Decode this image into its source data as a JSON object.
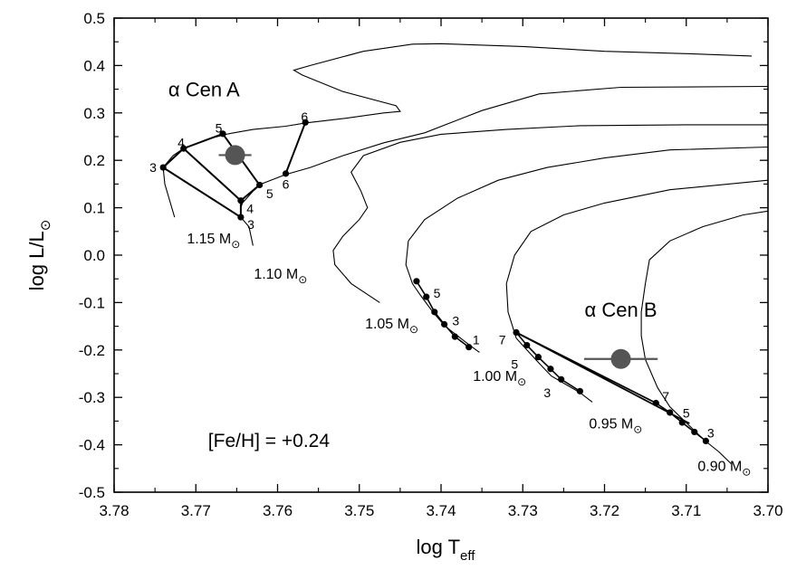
{
  "chart_data": {
    "type": "line",
    "title": "",
    "xaxis": {
      "label_main": "log T",
      "label_sub": "eff",
      "range": [
        3.78,
        3.7
      ],
      "ticks": [
        3.78,
        3.77,
        3.76,
        3.75,
        3.74,
        3.73,
        3.72,
        3.71,
        3.7
      ],
      "tick_labels": [
        "3.78",
        "3.77",
        "3.76",
        "3.75",
        "3.74",
        "3.73",
        "3.72",
        "3.71",
        "3.70"
      ],
      "reversed": true
    },
    "yaxis": {
      "label_main": "log L/L",
      "label_sub": "⊙",
      "range": [
        -0.5,
        0.5
      ],
      "ticks": [
        -0.5,
        -0.4,
        -0.3,
        -0.2,
        -0.1,
        0.0,
        0.1,
        0.2,
        0.3,
        0.4,
        0.5
      ],
      "tick_labels": [
        "-0.5",
        "-0.4",
        "-0.3",
        "-0.2",
        "-0.1",
        "0.0",
        "0.1",
        "0.2",
        "0.3",
        "0.4",
        "0.5"
      ]
    },
    "grid": false,
    "tracks": [
      {
        "mass_label": "1.15 M",
        "points": [
          [
            3.7726,
            0.08
          ],
          [
            3.7738,
            0.15
          ],
          [
            3.774,
            0.185
          ],
          [
            3.7728,
            0.21
          ],
          [
            3.7715,
            0.225
          ],
          [
            3.7685,
            0.245
          ],
          [
            3.766,
            0.256
          ],
          [
            3.763,
            0.265
          ],
          [
            3.759,
            0.272
          ],
          [
            3.7565,
            0.279
          ],
          [
            3.752,
            0.288
          ],
          [
            3.747,
            0.3
          ],
          [
            3.745,
            0.303
          ],
          [
            3.7455,
            0.315
          ],
          [
            3.752,
            0.345
          ],
          [
            3.757,
            0.38
          ],
          [
            3.758,
            0.39
          ],
          [
            3.756,
            0.4
          ],
          [
            3.7495,
            0.43
          ],
          [
            3.7435,
            0.445
          ],
          [
            3.74,
            0.446
          ],
          [
            3.73,
            0.44
          ],
          [
            3.72,
            0.43
          ],
          [
            3.71,
            0.425
          ],
          [
            3.702,
            0.42
          ]
        ]
      },
      {
        "mass_label": "1.10 M",
        "points": [
          [
            3.763,
            0.02
          ],
          [
            3.7635,
            0.06
          ],
          [
            3.7645,
            0.08
          ],
          [
            3.7645,
            0.1
          ],
          [
            3.7643,
            0.11
          ],
          [
            3.763,
            0.135
          ],
          [
            3.762,
            0.15
          ],
          [
            3.759,
            0.17
          ],
          [
            3.756,
            0.185
          ],
          [
            3.752,
            0.21
          ],
          [
            3.747,
            0.237
          ],
          [
            3.742,
            0.258
          ],
          [
            3.735,
            0.305
          ],
          [
            3.728,
            0.34
          ],
          [
            3.718,
            0.354
          ],
          [
            3.7,
            0.356
          ]
        ]
      },
      {
        "mass_label": "1.05 M",
        "points": [
          [
            3.7475,
            -0.1
          ],
          [
            3.751,
            -0.06
          ],
          [
            3.753,
            -0.02
          ],
          [
            3.7532,
            0.01
          ],
          [
            3.752,
            0.04
          ],
          [
            3.75,
            0.075
          ],
          [
            3.749,
            0.1
          ],
          [
            3.7498,
            0.135
          ],
          [
            3.751,
            0.175
          ],
          [
            3.7495,
            0.21
          ],
          [
            3.745,
            0.238
          ],
          [
            3.74,
            0.255
          ],
          [
            3.732,
            0.265
          ],
          [
            3.723,
            0.273
          ],
          [
            3.71,
            0.275
          ],
          [
            3.7,
            0.275
          ]
        ]
      },
      {
        "mass_label": "1.00 M",
        "points": [
          [
            3.7353,
            -0.205
          ],
          [
            3.7365,
            -0.19
          ],
          [
            3.738,
            -0.17
          ],
          [
            3.7395,
            -0.15
          ],
          [
            3.741,
            -0.12
          ],
          [
            3.7425,
            -0.085
          ],
          [
            3.7435,
            -0.06
          ],
          [
            3.7443,
            -0.02
          ],
          [
            3.744,
            0.03
          ],
          [
            3.742,
            0.075
          ],
          [
            3.738,
            0.12
          ],
          [
            3.733,
            0.158
          ],
          [
            3.727,
            0.185
          ],
          [
            3.72,
            0.205
          ],
          [
            3.712,
            0.222
          ],
          [
            3.7,
            0.228
          ]
        ]
      },
      {
        "mass_label": "0.95 M",
        "points": [
          [
            3.7215,
            -0.31
          ],
          [
            3.723,
            -0.29
          ],
          [
            3.7245,
            -0.275
          ],
          [
            3.7265,
            -0.255
          ],
          [
            3.728,
            -0.228
          ],
          [
            3.7295,
            -0.2
          ],
          [
            3.7308,
            -0.175
          ],
          [
            3.7318,
            -0.12
          ],
          [
            3.732,
            -0.06
          ],
          [
            3.731,
            0.0
          ],
          [
            3.729,
            0.05
          ],
          [
            3.725,
            0.085
          ],
          [
            3.72,
            0.11
          ],
          [
            3.712,
            0.138
          ],
          [
            3.7,
            0.158
          ]
        ]
      },
      {
        "mass_label": "0.90 M",
        "points": [
          [
            3.7045,
            -0.44
          ],
          [
            3.706,
            -0.415
          ],
          [
            3.7078,
            -0.39
          ],
          [
            3.709,
            -0.37
          ],
          [
            3.7105,
            -0.345
          ],
          [
            3.712,
            -0.32
          ],
          [
            3.7135,
            -0.28
          ],
          [
            3.715,
            -0.22
          ],
          [
            3.7155,
            -0.17
          ],
          [
            3.7155,
            -0.12
          ],
          [
            3.715,
            -0.06
          ],
          [
            3.7145,
            -0.01
          ],
          [
            3.712,
            0.03
          ],
          [
            3.708,
            0.06
          ],
          [
            3.703,
            0.085
          ],
          [
            3.7,
            0.093
          ]
        ]
      }
    ],
    "track_labels": [
      {
        "text": "1.15 M",
        "x": 3.7711,
        "y": 0.025
      },
      {
        "text": "1.10 M",
        "x": 3.7629,
        "y": -0.05
      },
      {
        "text": "1.05 M",
        "x": 3.7493,
        "y": -0.155
      },
      {
        "text": "1.00 M",
        "x": 3.7361,
        "y": -0.265
      },
      {
        "text": "0.95 M",
        "x": 3.7219,
        "y": -0.365
      },
      {
        "text": "0.90 M",
        "x": 3.7086,
        "y": -0.455
      }
    ],
    "isochrones_A": [
      {
        "name": "3",
        "points": [
          [
            3.774,
            0.185
          ],
          [
            3.7645,
            0.08
          ]
        ],
        "label_start": "3",
        "label_end": "3"
      },
      {
        "name": "4",
        "points": [
          [
            3.7715,
            0.225
          ],
          [
            3.7645,
            0.115
          ]
        ],
        "label_start": "4",
        "label_end": "4"
      },
      {
        "name": "5",
        "points": [
          [
            3.7667,
            0.256
          ],
          [
            3.7622,
            0.148
          ]
        ],
        "label_start": "5",
        "label_end": "5"
      },
      {
        "name": "6",
        "points": [
          [
            3.759,
            0.172
          ],
          [
            3.7566,
            0.28
          ]
        ],
        "label_start": "6",
        "label_end": "6"
      }
    ],
    "isochrone_connector_A": [
      [
        3.774,
        0.185
      ],
      [
        3.7715,
        0.225
      ],
      [
        3.7667,
        0.256
      ]
    ],
    "isochrone_connector_A2": [
      [
        3.7645,
        0.08
      ],
      [
        3.7645,
        0.115
      ],
      [
        3.7622,
        0.148
      ]
    ],
    "isochrones_B": [
      {
        "name": "7",
        "points": [
          [
            3.7308,
            -0.163
          ],
          [
            3.7137,
            -0.312
          ]
        ],
        "label_start": "7",
        "label_end": "7"
      },
      {
        "name": "7-lower",
        "points": [
          [
            3.7308,
            -0.163
          ],
          [
            3.7096,
            -0.355
          ]
        ]
      }
    ],
    "dots_100": {
      "points": [
        [
          3.743,
          -0.055
        ],
        [
          3.7418,
          -0.088
        ],
        [
          3.7408,
          -0.12
        ],
        [
          3.7396,
          -0.146
        ],
        [
          3.7383,
          -0.172
        ],
        [
          3.7366,
          -0.194
        ]
      ],
      "labels": [
        {
          "text": "5",
          "x": 3.7405,
          "y": -0.08
        },
        {
          "text": "3",
          "x": 3.7382,
          "y": -0.138
        },
        {
          "text": "1",
          "x": 3.7357,
          "y": -0.178
        }
      ]
    },
    "dots_095": {
      "points": [
        [
          3.7308,
          -0.163
        ],
        [
          3.7295,
          -0.19
        ],
        [
          3.7281,
          -0.215
        ],
        [
          3.7266,
          -0.24
        ],
        [
          3.7253,
          -0.262
        ],
        [
          3.723,
          -0.287
        ]
      ],
      "labels": [
        {
          "text": "7",
          "x": 3.7325,
          "y": -0.178
        },
        {
          "text": "5",
          "x": 3.731,
          "y": -0.23
        },
        {
          "text": "3",
          "x": 3.727,
          "y": -0.29
        }
      ]
    },
    "dots_090": {
      "points": [
        [
          3.7137,
          -0.312
        ],
        [
          3.712,
          -0.332
        ],
        [
          3.7105,
          -0.353
        ],
        [
          3.709,
          -0.373
        ],
        [
          3.7076,
          -0.392
        ]
      ],
      "labels": [
        {
          "text": "7",
          "x": 3.7125,
          "y": -0.298
        },
        {
          "text": "5",
          "x": 3.71,
          "y": -0.333
        },
        {
          "text": "3",
          "x": 3.707,
          "y": -0.375
        }
      ]
    },
    "stars": [
      {
        "name": "α Cen A",
        "label": "α Cen A",
        "x": 3.7652,
        "y": 0.211,
        "x_err": 0.002,
        "label_x": 3.769,
        "label_y": 0.335
      },
      {
        "name": "α Cen B",
        "label": "α Cen B",
        "x": 3.718,
        "y": -0.219,
        "x_err": 0.0045,
        "label_x": 3.718,
        "label_y": -0.13
      }
    ],
    "metallicity_label": "[Fe/H] = +0.24",
    "mass_unit_symbol": "⊙"
  }
}
